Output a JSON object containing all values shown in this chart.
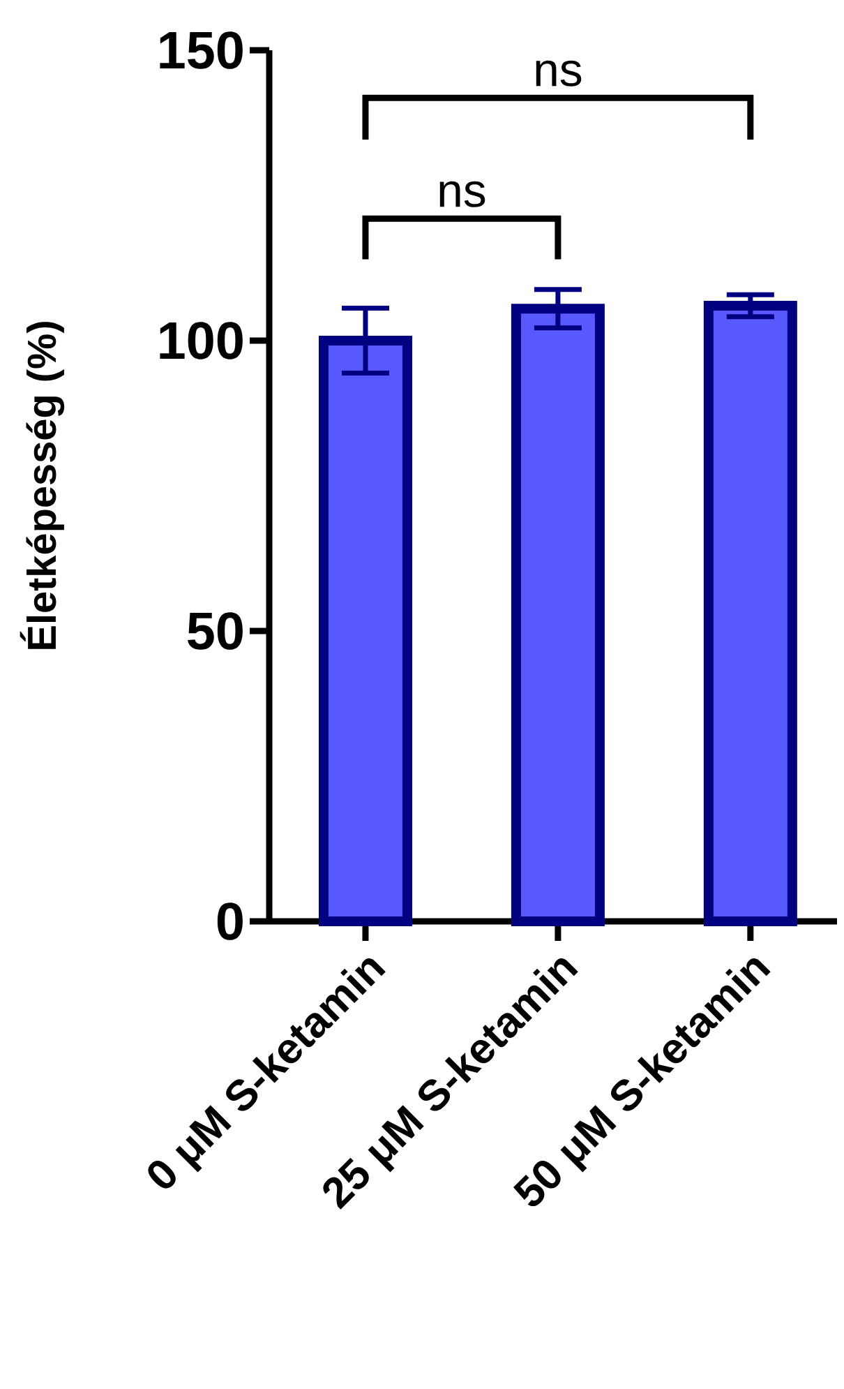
{
  "chart_data": {
    "type": "bar",
    "ylabel": "Életképesség (%)",
    "categories": [
      "0 μM S-ketamin",
      "25 μM S-ketamin",
      "50 μM S-ketamin"
    ],
    "values": [
      100,
      105.5,
      106
    ],
    "errors": [
      5.6,
      3.3,
      1.9
    ],
    "color": "#5858ff",
    "ylim": [
      0,
      150
    ],
    "yticks": [
      0,
      50,
      100,
      150
    ],
    "annotations": [
      "ns",
      "ns"
    ]
  }
}
